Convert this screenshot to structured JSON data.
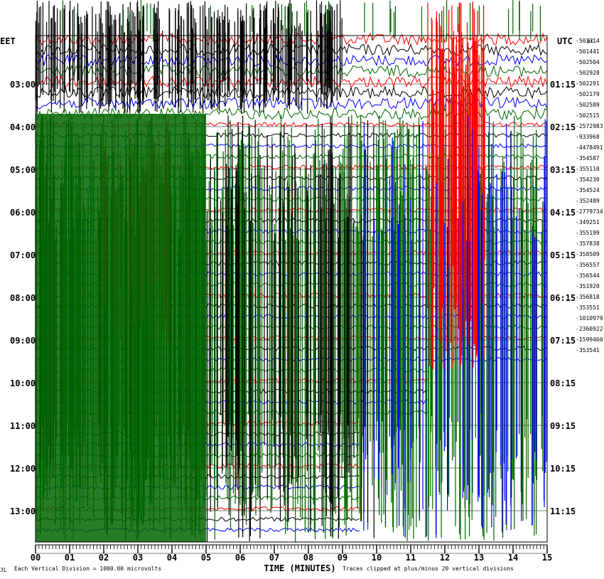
{
  "chart_data": {
    "type": "line",
    "left_header": "EET",
    "right_header": "UTC",
    "corner_mark": "pc",
    "left_time_labels": [
      "03:00",
      "04:00",
      "05:00",
      "06:00",
      "07:00",
      "08:00",
      "09:00",
      "10:00",
      "11:00",
      "12:00",
      "13:00"
    ],
    "right_time_labels": [
      "01:15",
      "02:15",
      "03:15",
      "04:15",
      "05:15",
      "06:15",
      "07:15",
      "08:15",
      "09:15",
      "10:15",
      "11:15"
    ],
    "trace_offsets": [
      "-503314",
      "-501441",
      "-502504",
      "-502928",
      "-502291",
      "-502179",
      "-502589",
      "-502515",
      "-2572983",
      "-933968",
      "-4478491",
      "-354587",
      "-355110",
      "-354230",
      "-354524",
      "-352489",
      "-2779734",
      "-349251",
      "-355199",
      "-357838",
      "-358509",
      "-356557",
      "-356544",
      "-351920",
      "-356818",
      "-353551",
      "-1010979",
      "-2360922",
      "-1599460",
      "-353541"
    ],
    "x_ticks": [
      "00",
      "01",
      "02",
      "03",
      "04",
      "05",
      "06",
      "07",
      "08",
      "09",
      "10",
      "11",
      "12",
      "13",
      "14",
      "15"
    ],
    "x_range": [
      0,
      15
    ],
    "xlabel": "TIME (MINUTES)",
    "footer_left": "Each Vertical Division = 1000.00 microvolts",
    "footer_right": "Traces clipped at plus/minus 20 vertical divisions",
    "footer_mark": "JL",
    "colors": {
      "black": "#000000",
      "red": "#ff0000",
      "blue": "#0000ff",
      "green": "#006600"
    },
    "trace_colors": [
      "red",
      "black",
      "blue",
      "green"
    ]
  }
}
